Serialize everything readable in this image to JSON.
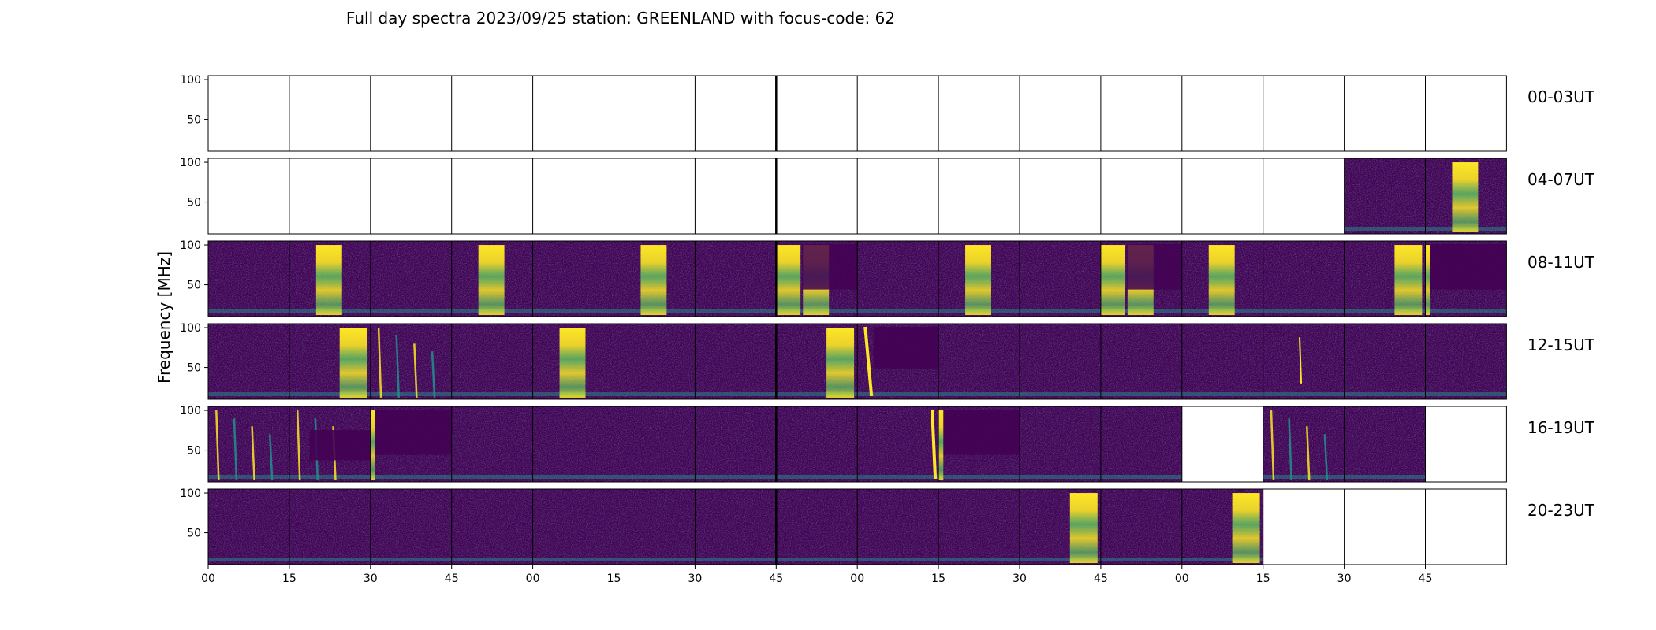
{
  "chart_data": {
    "type": "heatmap",
    "title": "Full day spectra 2023/09/25 station: GREENLAND with focus-code: 62",
    "ylabel": "Frequency [MHz]",
    "y_ticks": [
      50,
      100
    ],
    "ylim": [
      10,
      105
    ],
    "x_tick_labels": [
      "00",
      "15",
      "30",
      "45",
      "00",
      "15",
      "30",
      "45",
      "00",
      "15",
      "30",
      "45",
      "00",
      "15",
      "30",
      "45"
    ],
    "colormap": "viridis",
    "colors": {
      "background": "#440154",
      "bright": "#fde725",
      "mid": "#21918c"
    },
    "rows": [
      {
        "label": "00-03UT",
        "panels": [
          "",
          "",
          "",
          "",
          "",
          "",
          "",
          "",
          "",
          "",
          "",
          "",
          "",
          "",
          "",
          ""
        ]
      },
      {
        "label": "04-07UT",
        "panels": [
          "",
          "",
          "",
          "",
          "",
          "",
          "",
          "",
          "",
          "",
          "",
          "",
          "",
          "",
          "n",
          "b"
        ]
      },
      {
        "label": "08-11UT",
        "panels": [
          "n",
          "b",
          "n",
          "b",
          "n",
          "b",
          "n",
          "B",
          "n",
          "b",
          "n",
          "B",
          "b",
          "n",
          "e",
          "D"
        ]
      },
      {
        "label": "12-15UT",
        "panels": [
          "n",
          "e",
          "s",
          "n",
          "b",
          "n",
          "n",
          "e",
          "L",
          "n",
          "n",
          "n",
          "n",
          "t",
          "n",
          "n"
        ]
      },
      {
        "label": "16-19UT",
        "panels": [
          "s",
          "S",
          "D",
          "n",
          "n",
          "n",
          "n",
          "n",
          "E",
          "D",
          "n",
          "n",
          "",
          "s",
          "n",
          ""
        ]
      },
      {
        "label": "20-23UT",
        "panels": [
          "n",
          "n",
          "n",
          "n",
          "n",
          "n",
          "n",
          "n",
          "n",
          "n",
          "e",
          "n",
          "e",
          "",
          "",
          ""
        ]
      }
    ]
  }
}
